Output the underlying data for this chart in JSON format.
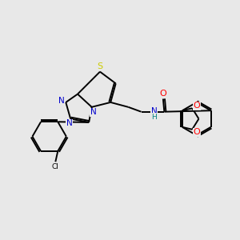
{
  "background_color": "#e8e8e8",
  "bond_color": "#000000",
  "atom_colors": {
    "S": "#cccc00",
    "N": "#0000cc",
    "O": "#ff0000",
    "Cl": "#000000",
    "C": "#000000",
    "H": "#008080",
    "NH": "#008080"
  },
  "figsize": [
    3.0,
    3.0
  ],
  "dpi": 100,
  "lw": 1.4
}
